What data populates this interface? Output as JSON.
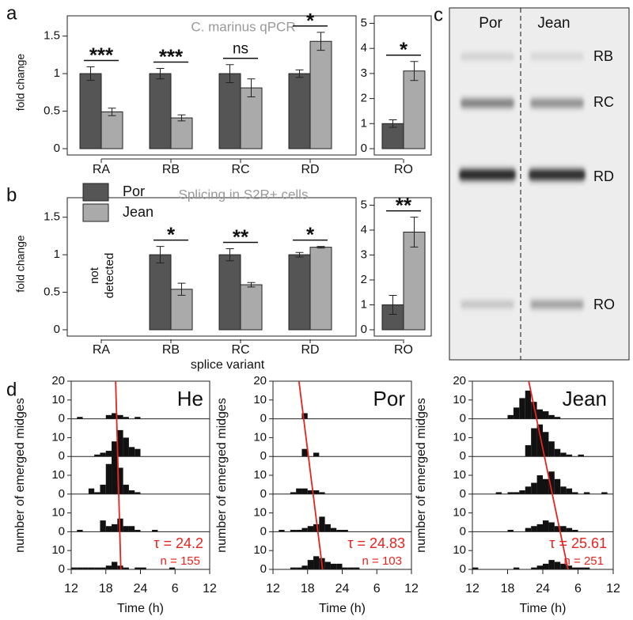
{
  "panel_labels": [
    "a",
    "b",
    "c",
    "d"
  ],
  "gel": {
    "lanes": [
      "Por",
      "Jean"
    ],
    "bands": [
      "RB",
      "RC",
      "RD",
      "RO"
    ]
  },
  "chart_data": [
    {
      "type": "bar",
      "title": "C. marinus qPCR",
      "ylabel": "fold change",
      "categories": [
        "RA",
        "RB",
        "RC",
        "RD"
      ],
      "ylim": [
        0,
        1.77
      ],
      "yticks": [
        0,
        0.5,
        1,
        1.5
      ],
      "series": [
        {
          "color": "#555555",
          "values": [
            1,
            1,
            1,
            1
          ],
          "errors": [
            0.09,
            0.07,
            0.12,
            0.05
          ]
        },
        {
          "color": "#aaaaaa",
          "values": [
            0.49,
            0.41,
            0.81,
            1.43
          ],
          "errors": [
            0.05,
            0.04,
            0.12,
            0.12
          ]
        }
      ],
      "annotations": [
        "***",
        "***",
        "ns",
        "*"
      ]
    },
    {
      "type": "bar",
      "categories": [
        "RO"
      ],
      "ylim": [
        0,
        5.3
      ],
      "yticks": [
        0,
        1,
        2,
        3,
        4,
        5
      ],
      "series": [
        {
          "color": "#555555",
          "values": [
            1
          ],
          "errors": [
            0.15
          ]
        },
        {
          "color": "#aaaaaa",
          "values": [
            3.1
          ],
          "errors": [
            0.38
          ]
        }
      ],
      "annotations": [
        "*"
      ]
    },
    {
      "type": "bar",
      "title": "Splicing in S2R+ cells",
      "ylabel": "fold change",
      "xlabel": "splice variant",
      "categories": [
        "RA",
        "RB",
        "RC",
        "RD"
      ],
      "ylim": [
        0,
        1.76
      ],
      "yticks": [
        0,
        0.5,
        1,
        1.5
      ],
      "legend": "upper left",
      "note_lines": [
        "not",
        "detected"
      ],
      "series": [
        {
          "name": "Por",
          "color": "#555555",
          "values": [
            null,
            1,
            1,
            1
          ],
          "errors": [
            null,
            0.11,
            0.08,
            0.03
          ]
        },
        {
          "name": "Jean",
          "color": "#aaaaaa",
          "values": [
            null,
            0.54,
            0.6,
            1.1
          ],
          "errors": [
            null,
            0.08,
            0.03,
            0.01
          ]
        }
      ],
      "annotations": [
        null,
        "*",
        "**",
        "*"
      ]
    },
    {
      "type": "bar",
      "categories": [
        "RO"
      ],
      "ylim": [
        0,
        5.3
      ],
      "yticks": [
        0,
        1,
        2,
        3,
        4,
        5
      ],
      "series": [
        {
          "color": "#555555",
          "values": [
            1
          ],
          "errors": [
            0.38
          ]
        },
        {
          "color": "#aaaaaa",
          "values": [
            3.92
          ],
          "errors": [
            0.6
          ]
        }
      ],
      "annotations": [
        "**"
      ]
    },
    {
      "type": "histogram",
      "title": "He",
      "xlabel": "Time (h)",
      "ylabel": "number of emerged midges",
      "color": "#111111",
      "line_color": "#e8231f",
      "bins": [
        12,
        13,
        14,
        15,
        16,
        17,
        18,
        19,
        20,
        21,
        22,
        23,
        24,
        25,
        26,
        27,
        28,
        29,
        30,
        31,
        32,
        33,
        34,
        35,
        36
      ],
      "xlim": [
        12,
        36
      ],
      "ylim": [
        0,
        20
      ],
      "yticks": [
        0,
        10,
        20
      ],
      "xticks": [
        12,
        18,
        24,
        {
          "value": 30,
          "label": "6"
        },
        {
          "value": 36,
          "label": "12"
        }
      ],
      "series": [
        {
          "values": [
            0,
            1,
            0,
            0,
            0,
            0,
            2,
            3,
            2,
            1,
            0,
            1,
            0,
            0,
            0,
            0,
            0,
            0,
            0,
            0,
            0,
            0,
            0,
            0
          ]
        },
        {
          "values": [
            0,
            0,
            0,
            0,
            1,
            2,
            3,
            8,
            14,
            10,
            5,
            4,
            0,
            0,
            0,
            0,
            0,
            0,
            0,
            0,
            0,
            0,
            0,
            0
          ]
        },
        {
          "values": [
            0,
            0,
            0,
            3,
            1,
            5,
            16,
            20,
            14,
            5,
            2,
            1,
            0,
            0,
            0,
            0,
            0,
            0,
            0,
            0,
            0,
            0,
            0,
            0
          ]
        },
        {
          "values": [
            0,
            1,
            0,
            0,
            0,
            6,
            3,
            4,
            7,
            3,
            3,
            1,
            0,
            0,
            1,
            0,
            0,
            0,
            0,
            0,
            0,
            0,
            0,
            0
          ]
        },
        {
          "values": [
            1,
            1,
            1,
            1,
            1,
            1,
            2,
            4,
            2,
            1,
            0,
            1,
            1,
            0,
            0,
            0,
            0,
            1,
            0,
            0,
            0,
            0,
            0,
            0
          ]
        }
      ],
      "fit_line_x": [
        19.7,
        20.6
      ],
      "tau_label": "τ = 24.2",
      "n_label": "n = 155"
    },
    {
      "type": "histogram",
      "title": "Por",
      "xlabel": "Time (h)",
      "ylabel": "number of emerged midges",
      "color": "#111111",
      "line_color": "#e8231f",
      "bins": [
        12,
        13,
        14,
        15,
        16,
        17,
        18,
        19,
        20,
        21,
        22,
        23,
        24,
        25,
        26,
        27,
        28,
        29,
        30,
        31,
        32,
        33,
        34,
        35,
        36
      ],
      "xlim": [
        12,
        36
      ],
      "ylim": [
        0,
        20
      ],
      "yticks": [
        0,
        10,
        20
      ],
      "xticks": [
        12,
        18,
        24,
        {
          "value": 30,
          "label": "6"
        },
        {
          "value": 36,
          "label": "12"
        }
      ],
      "series": [
        {
          "values": [
            0,
            0,
            0,
            0,
            0,
            3,
            0,
            0,
            0,
            0,
            0,
            0,
            0,
            0,
            0,
            0,
            0,
            0,
            0,
            0,
            0,
            0,
            0,
            0
          ]
        },
        {
          "values": [
            0,
            0,
            0,
            0,
            0,
            4,
            0,
            2,
            0,
            0,
            0,
            0,
            0,
            0,
            0,
            0,
            0,
            0,
            0,
            0,
            0,
            0,
            0,
            0
          ]
        },
        {
          "values": [
            0,
            0,
            0,
            1,
            3,
            3,
            2,
            2,
            1,
            0,
            0,
            0,
            0,
            0,
            0,
            0,
            0,
            0,
            0,
            0,
            0,
            0,
            0,
            0
          ]
        },
        {
          "values": [
            0,
            1,
            0,
            1,
            1,
            2,
            3,
            4,
            8,
            4,
            2,
            1,
            1,
            0,
            0,
            0,
            0,
            0,
            0,
            0,
            0,
            0,
            0,
            0
          ]
        },
        {
          "values": [
            0,
            0,
            0,
            1,
            1,
            2,
            5,
            7,
            6,
            4,
            3,
            3,
            1,
            1,
            1,
            0,
            0,
            0,
            0,
            0,
            0,
            0,
            0,
            0
          ]
        }
      ],
      "fit_line_x": [
        16.5,
        20.6
      ],
      "tau_label": "τ = 24.83",
      "n_label": "n = 103"
    },
    {
      "type": "histogram",
      "title": "Jean",
      "xlabel": "Time (h)",
      "ylabel": "number of emerged midges",
      "color": "#111111",
      "line_color": "#e8231f",
      "bins": [
        12,
        13,
        14,
        15,
        16,
        17,
        18,
        19,
        20,
        21,
        22,
        23,
        24,
        25,
        26,
        27,
        28,
        29,
        30,
        31,
        32,
        33,
        34,
        35,
        36
      ],
      "xlim": [
        12,
        36
      ],
      "ylim": [
        0,
        20
      ],
      "yticks": [
        0,
        10,
        20
      ],
      "xticks": [
        12,
        18,
        24,
        {
          "value": 30,
          "label": "6"
        },
        {
          "value": 36,
          "label": "12"
        }
      ],
      "series": [
        {
          "values": [
            0,
            0,
            0,
            0,
            0,
            0,
            2,
            6,
            11,
            15,
            9,
            5,
            4,
            2,
            1,
            0,
            0,
            0,
            0,
            0,
            0,
            0,
            0,
            0
          ]
        },
        {
          "values": [
            0,
            0,
            0,
            0,
            0,
            0,
            0,
            0,
            0,
            6,
            15,
            17,
            13,
            8,
            4,
            2,
            1,
            0,
            1,
            0,
            0,
            0,
            0,
            0
          ]
        },
        {
          "values": [
            0,
            0,
            0,
            0,
            1,
            0,
            1,
            1,
            2,
            4,
            6,
            10,
            8,
            12,
            8,
            4,
            3,
            1,
            0,
            1,
            0,
            0,
            1,
            0
          ]
        },
        {
          "values": [
            0,
            0,
            0,
            0,
            0,
            0,
            1,
            0,
            0,
            2,
            3,
            4,
            6,
            5,
            3,
            3,
            2,
            1,
            0,
            0,
            0,
            0,
            0,
            0
          ]
        },
        {
          "values": [
            1,
            0,
            0,
            0,
            0,
            0,
            0,
            1,
            0,
            0,
            1,
            2,
            3,
            5,
            4,
            3,
            2,
            1,
            1,
            1,
            0,
            0,
            0,
            0
          ]
        }
      ],
      "fit_line_x": [
        21.6,
        28.3
      ],
      "tau_label": "τ = 25.61",
      "n_label": "n = 251"
    }
  ]
}
